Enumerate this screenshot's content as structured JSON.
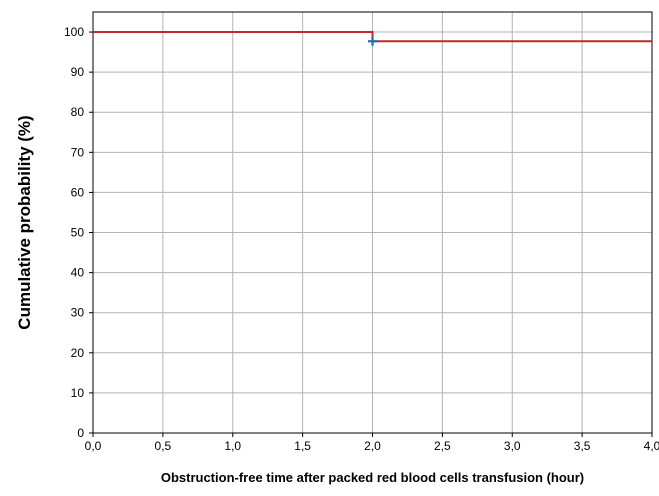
{
  "chart_data": {
    "type": "line",
    "title": "",
    "xlabel": "Obstruction-free time after packed red blood cells transfusion (hour)",
    "ylabel": "Cumulative probability (%)",
    "xlim": [
      0,
      4
    ],
    "ylim": [
      0,
      105
    ],
    "x_ticks": [
      "0,0",
      "0,5",
      "1,0",
      "1,5",
      "2,0",
      "2,5",
      "3,0",
      "3,5",
      "4,0"
    ],
    "y_ticks": [
      "0",
      "10",
      "20",
      "30",
      "40",
      "50",
      "60",
      "70",
      "80",
      "90",
      "100"
    ],
    "grid": true,
    "series": [
      {
        "color": "#c0282d",
        "step": true,
        "x": [
          0,
          2.0,
          2.0,
          4.0
        ],
        "y": [
          100,
          100,
          97.7,
          97.7
        ]
      }
    ],
    "censor_marks": [
      {
        "x": 2.0,
        "y": 97.7,
        "color": "#1f6fb5"
      }
    ]
  }
}
